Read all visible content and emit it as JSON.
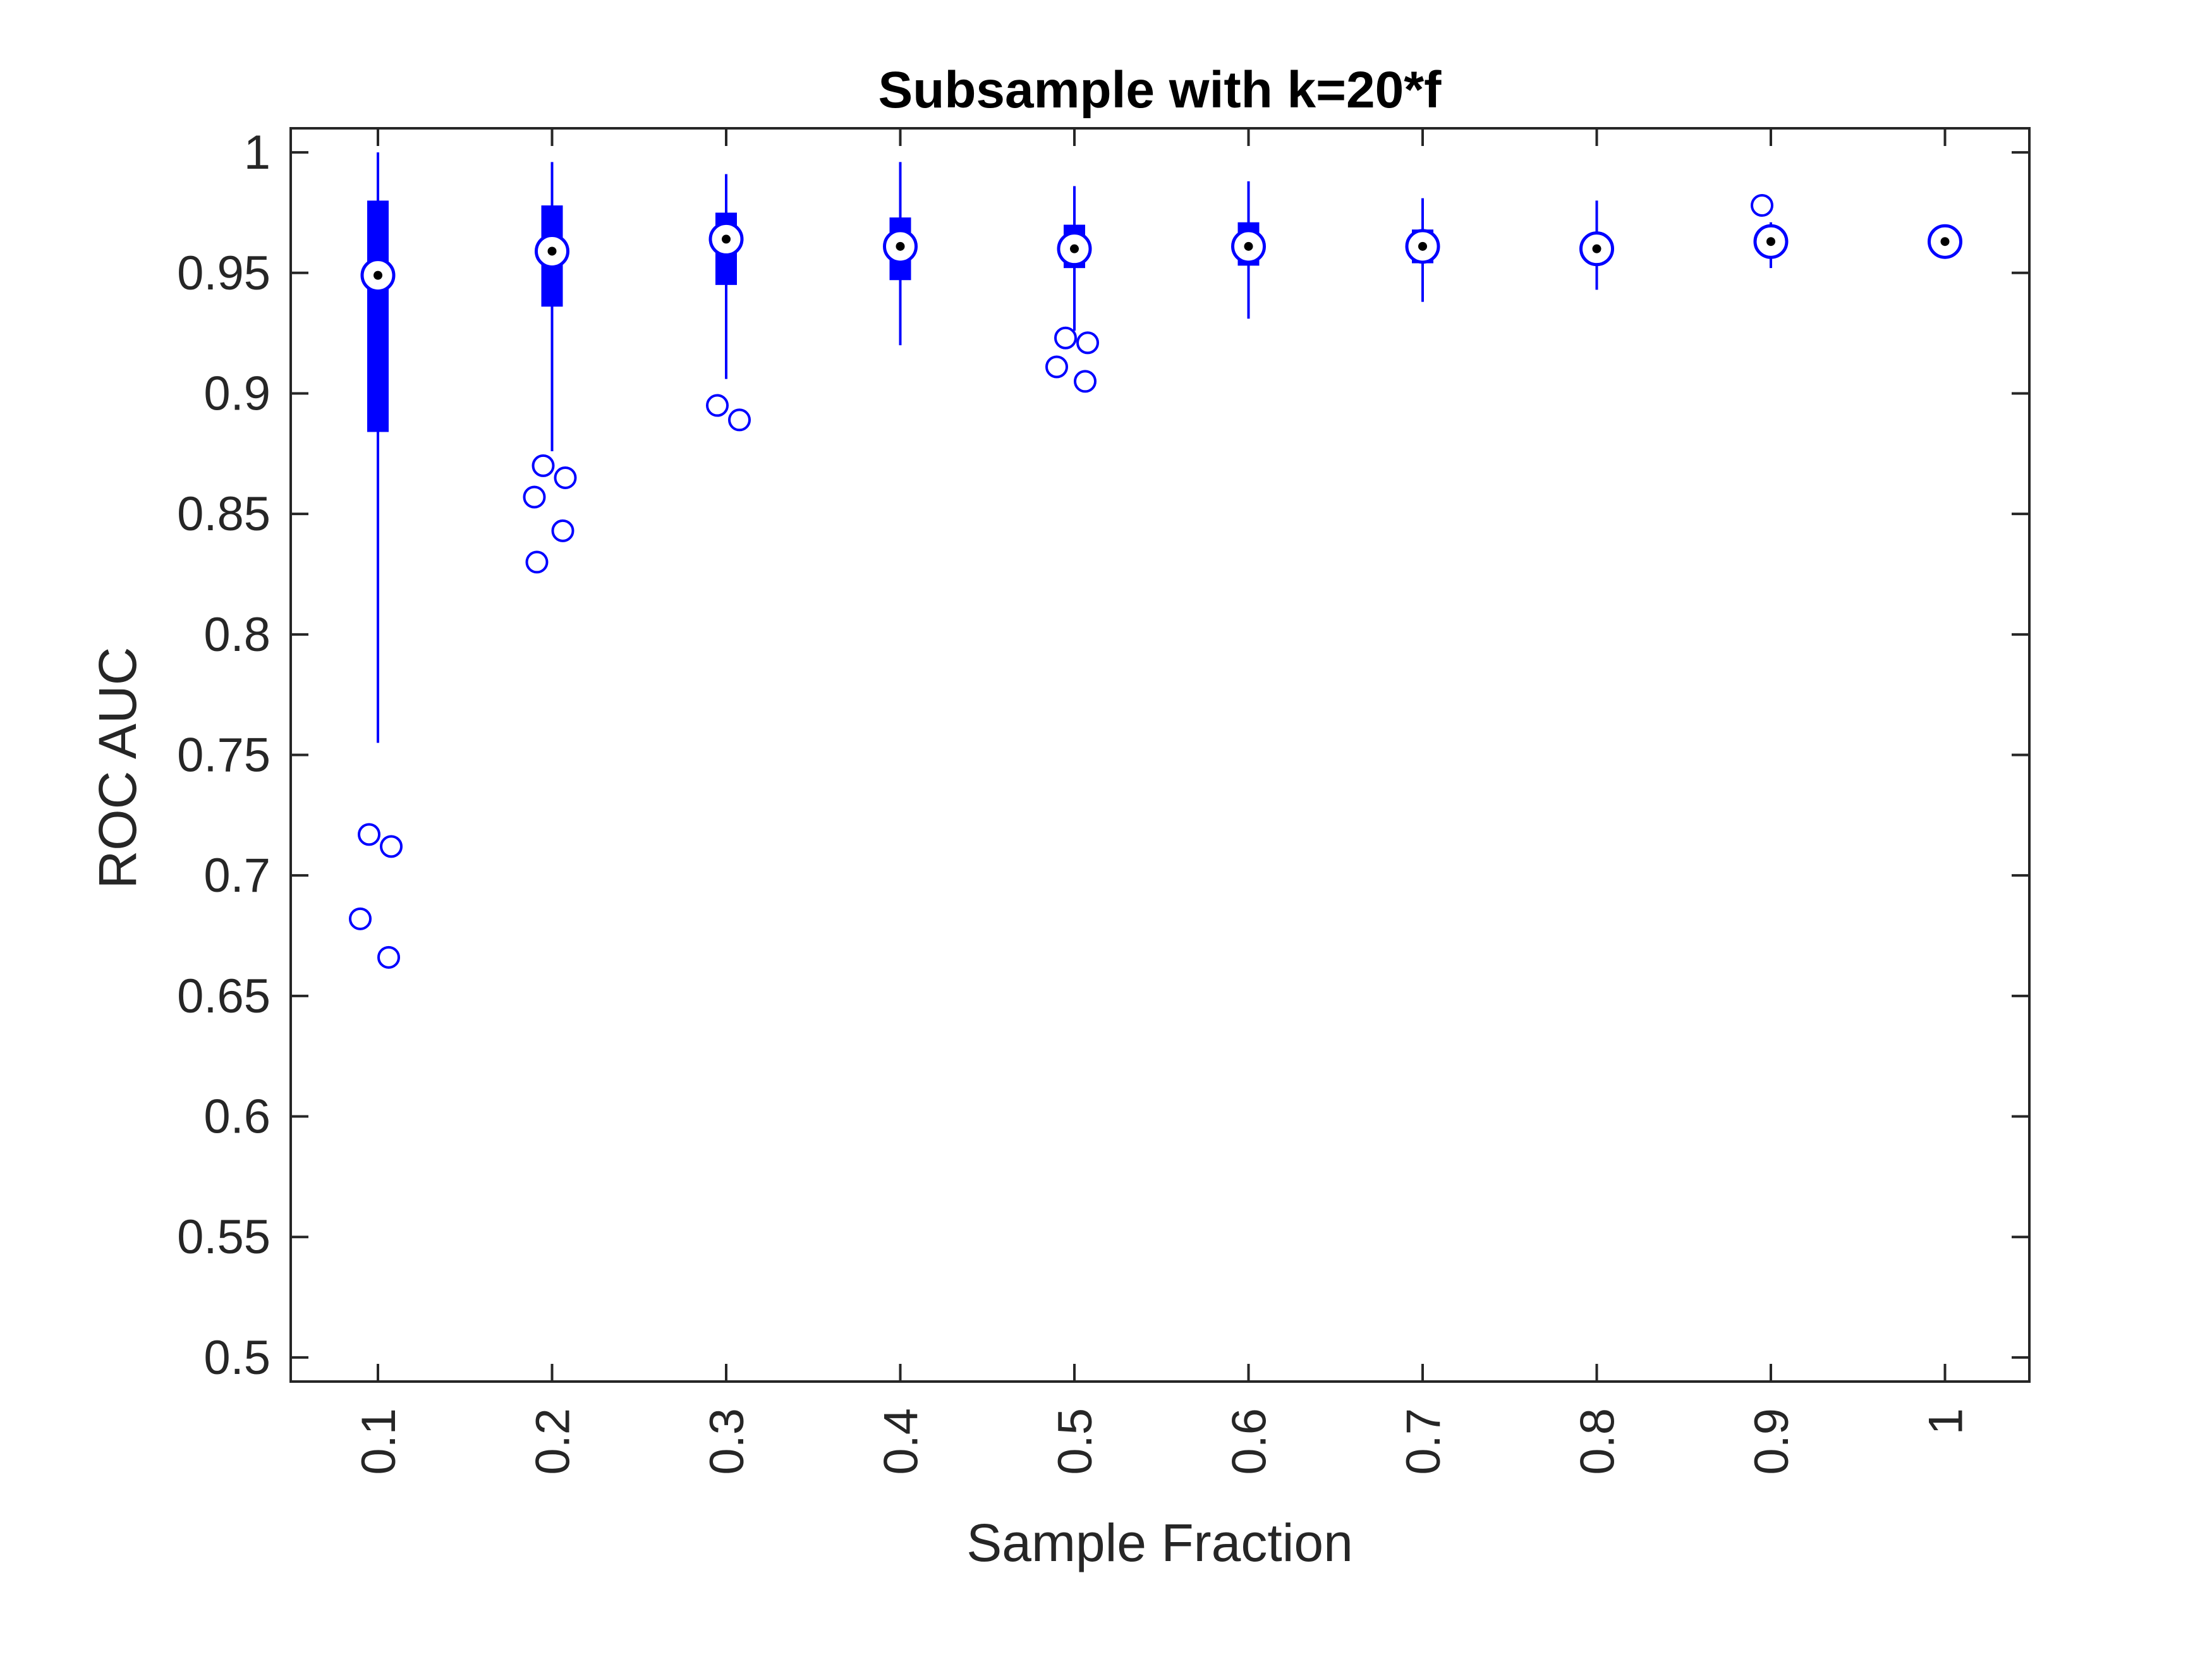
{
  "chart_data": {
    "type": "box",
    "title": "Subsample with k=20*f",
    "xlabel": "Sample Fraction",
    "ylabel": "ROC AUC",
    "ylim": [
      0.49,
      1.01
    ],
    "yticks": [
      0.5,
      0.55,
      0.6,
      0.65,
      0.7,
      0.75,
      0.8,
      0.85,
      0.9,
      0.95,
      1
    ],
    "ytick_labels": [
      "0.5",
      "0.55",
      "0.6",
      "0.65",
      "0.7",
      "0.75",
      "0.8",
      "0.85",
      "0.9",
      "0.95",
      "1"
    ],
    "categories": [
      "0.1",
      "0.2",
      "0.3",
      "0.4",
      "0.5",
      "0.6",
      "0.7",
      "0.8",
      "0.9",
      "1"
    ],
    "grid": false,
    "color": "#0000ff",
    "boxes": [
      {
        "median": 0.949,
        "q1": 0.884,
        "q3": 0.98,
        "whisker_low": 0.755,
        "whisker_high": 1.0,
        "outliers": [
          0.717,
          0.712,
          0.682,
          0.666
        ]
      },
      {
        "median": 0.959,
        "q1": 0.936,
        "q3": 0.978,
        "whisker_low": 0.876,
        "whisker_high": 0.996,
        "outliers": [
          0.87,
          0.865,
          0.857,
          0.843,
          0.83
        ]
      },
      {
        "median": 0.964,
        "q1": 0.945,
        "q3": 0.975,
        "whisker_low": 0.906,
        "whisker_high": 0.991,
        "outliers": [
          0.895,
          0.889
        ]
      },
      {
        "median": 0.961,
        "q1": 0.947,
        "q3": 0.973,
        "whisker_low": 0.92,
        "whisker_high": 0.996,
        "outliers": []
      },
      {
        "median": 0.96,
        "q1": 0.952,
        "q3": 0.97,
        "whisker_low": 0.926,
        "whisker_high": 0.986,
        "outliers": [
          0.923,
          0.921,
          0.911,
          0.905
        ]
      },
      {
        "median": 0.961,
        "q1": 0.953,
        "q3": 0.971,
        "whisker_low": 0.931,
        "whisker_high": 0.988,
        "outliers": []
      },
      {
        "median": 0.961,
        "q1": 0.954,
        "q3": 0.968,
        "whisker_low": 0.938,
        "whisker_high": 0.981,
        "outliers": []
      },
      {
        "median": 0.96,
        "q1": 0.955,
        "q3": 0.965,
        "whisker_low": 0.943,
        "whisker_high": 0.98,
        "outliers": []
      },
      {
        "median": 0.963,
        "q1": 0.959,
        "q3": 0.967,
        "whisker_low": 0.952,
        "whisker_high": 0.971,
        "outliers": [
          0.978
        ]
      },
      {
        "median": 0.963,
        "q1": 0.962,
        "q3": 0.964,
        "whisker_low": 0.962,
        "whisker_high": 0.964,
        "outliers": []
      }
    ]
  }
}
